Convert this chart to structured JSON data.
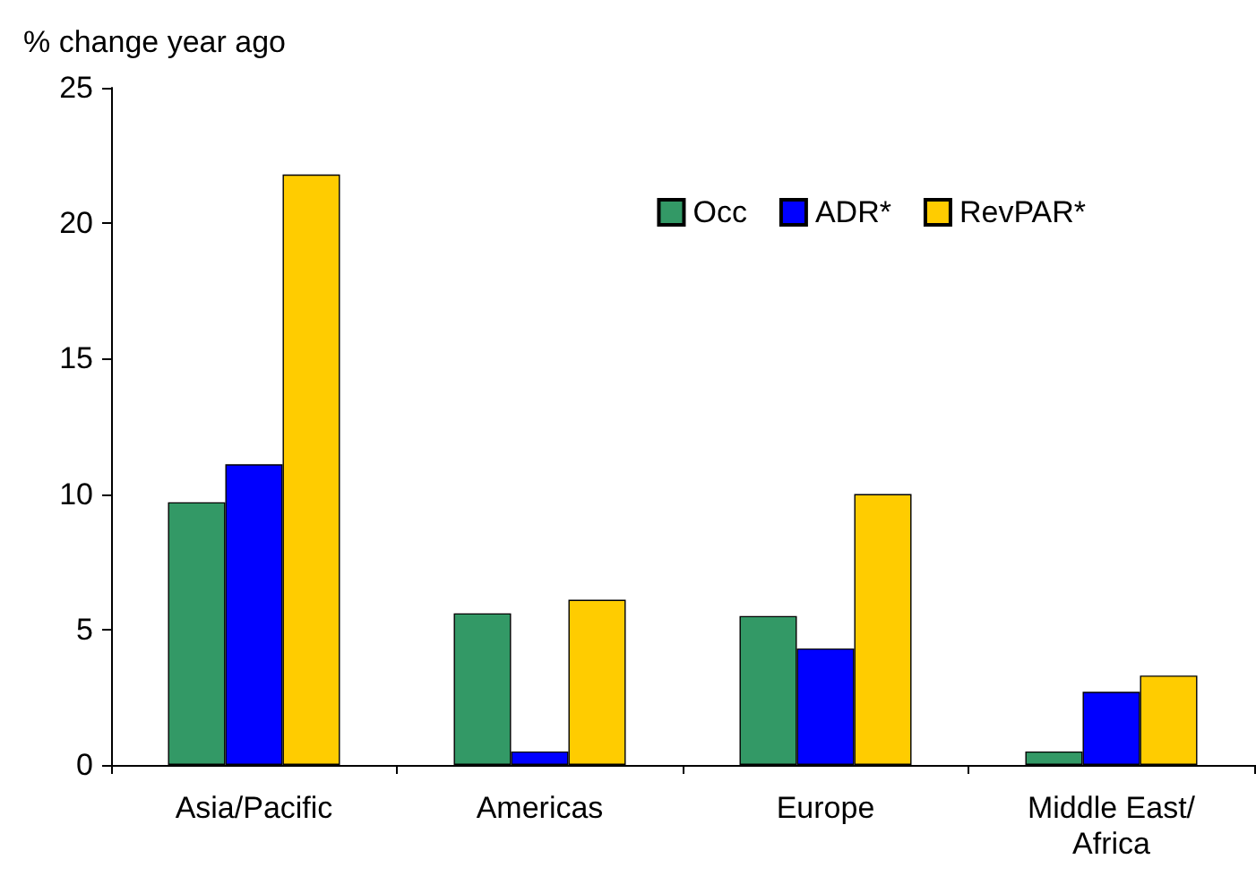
{
  "chart_data": {
    "type": "bar",
    "ylabel": "% change year ago",
    "categories": [
      "Asia/Pacific",
      "Americas",
      "Europe",
      "Middle East/Africa"
    ],
    "series": [
      {
        "name": "Occ",
        "color": "#339966",
        "values": [
          9.7,
          5.6,
          5.5,
          0.5
        ]
      },
      {
        "name": "ADR*",
        "color": "#0000ff",
        "values": [
          11.1,
          0.5,
          4.3,
          2.7
        ]
      },
      {
        "name": "RevPAR*",
        "color": "#ffcc00",
        "values": [
          21.8,
          6.1,
          10.0,
          3.3
        ]
      }
    ],
    "ylim": [
      0,
      25
    ],
    "yticks": [
      0,
      5,
      10,
      15,
      20,
      25
    ],
    "grid": false,
    "legend": "top right"
  }
}
